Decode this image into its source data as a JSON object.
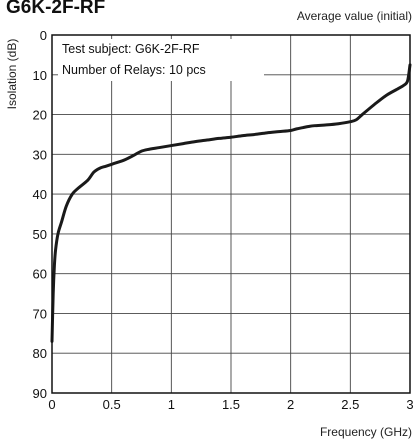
{
  "chart_data": {
    "type": "line",
    "title": "G6K-2F-RF",
    "subtitle": "Average value (initial)",
    "xlabel": "Frequency (GHz)",
    "ylabel": "Isolation (dB)",
    "xlim": [
      0,
      3
    ],
    "ylim": [
      0,
      90
    ],
    "y_inverted": true,
    "x_ticks": [
      "0",
      "0.5",
      "1",
      "1.5",
      "2",
      "2.5",
      "3"
    ],
    "y_ticks": [
      "0",
      "10",
      "20",
      "30",
      "40",
      "50",
      "60",
      "70",
      "80",
      "90"
    ],
    "grid": true,
    "annotations": [
      "Test subject: G6K-2F-RF",
      "Number of Relays: 10 pcs"
    ],
    "series": [
      {
        "color": "#1a1a1a",
        "x": [
          0.0,
          0.01,
          0.02,
          0.03,
          0.05,
          0.08,
          0.12,
          0.17,
          0.22,
          0.3,
          0.35,
          0.4,
          0.45,
          0.5,
          0.55,
          0.6,
          0.65,
          0.7,
          0.75,
          0.8,
          0.9,
          1.0,
          1.1,
          1.2,
          1.3,
          1.4,
          1.5,
          1.6,
          1.7,
          1.8,
          1.9,
          2.0,
          2.05,
          2.1,
          2.15,
          2.2,
          2.3,
          2.4,
          2.5,
          2.55,
          2.6,
          2.7,
          2.8,
          2.9,
          2.95,
          2.98,
          3.0
        ],
        "y": [
          77,
          65,
          58,
          54,
          50,
          47,
          43,
          40,
          38.5,
          36.5,
          34.5,
          33.5,
          33,
          32.5,
          32,
          31.5,
          30.8,
          30,
          29.2,
          28.8,
          28.3,
          27.8,
          27.3,
          26.8,
          26.4,
          26.0,
          25.7,
          25.3,
          25.0,
          24.6,
          24.3,
          24.0,
          23.6,
          23.3,
          23.0,
          22.8,
          22.6,
          22.3,
          21.8,
          21.3,
          20.0,
          17.5,
          15.2,
          13.5,
          12.6,
          11.5,
          7.5
        ]
      }
    ]
  }
}
